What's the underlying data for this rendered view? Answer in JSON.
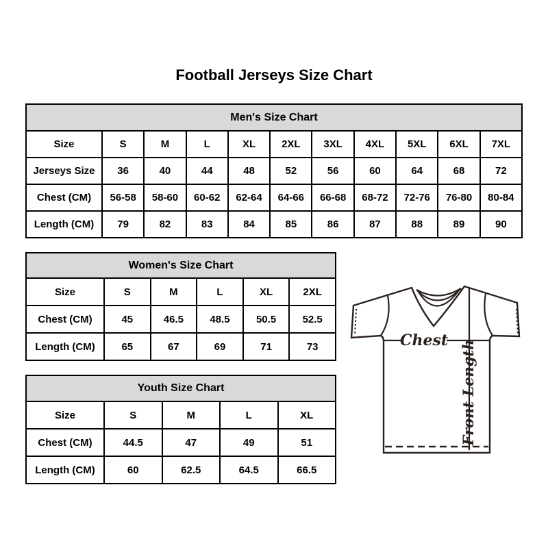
{
  "page": {
    "title": "Football Jerseys Size Chart"
  },
  "colors": {
    "table_header_bg": "#d9d9d9",
    "table_border": "#000000",
    "diagram_line": "#2a211e",
    "text": "#000000",
    "background": "#ffffff"
  },
  "diagram": {
    "chest_label": "Chest",
    "front_length_label": "Front Length"
  },
  "chart_data": [
    {
      "type": "table",
      "title": "Men's Size Chart",
      "rows": [
        {
          "label": "Size",
          "values": [
            "S",
            "M",
            "L",
            "XL",
            "2XL",
            "3XL",
            "4XL",
            "5XL",
            "6XL",
            "7XL"
          ]
        },
        {
          "label": "Jerseys Size",
          "values": [
            "36",
            "40",
            "44",
            "48",
            "52",
            "56",
            "60",
            "64",
            "68",
            "72"
          ]
        },
        {
          "label": "Chest (CM)",
          "values": [
            "56-58",
            "58-60",
            "60-62",
            "62-64",
            "64-66",
            "66-68",
            "68-72",
            "72-76",
            "76-80",
            "80-84"
          ]
        },
        {
          "label": "Length (CM)",
          "values": [
            "79",
            "82",
            "83",
            "84",
            "85",
            "86",
            "87",
            "88",
            "89",
            "90"
          ]
        }
      ]
    },
    {
      "type": "table",
      "title": "Women's Size Chart",
      "rows": [
        {
          "label": "Size",
          "values": [
            "S",
            "M",
            "L",
            "XL",
            "2XL"
          ]
        },
        {
          "label": "Chest (CM)",
          "values": [
            "45",
            "46.5",
            "48.5",
            "50.5",
            "52.5"
          ]
        },
        {
          "label": "Length (CM)",
          "values": [
            "65",
            "67",
            "69",
            "71",
            "73"
          ]
        }
      ]
    },
    {
      "type": "table",
      "title": "Youth Size Chart",
      "rows": [
        {
          "label": "Size",
          "values": [
            "S",
            "M",
            "L",
            "XL"
          ]
        },
        {
          "label": "Chest (CM)",
          "values": [
            "44.5",
            "47",
            "49",
            "51"
          ]
        },
        {
          "label": "Length (CM)",
          "values": [
            "60",
            "62.5",
            "64.5",
            "66.5"
          ]
        }
      ]
    }
  ]
}
